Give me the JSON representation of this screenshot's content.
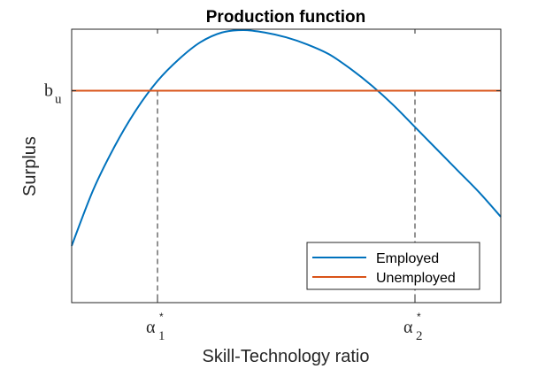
{
  "chart_data": {
    "type": "line",
    "title": "Production function",
    "xlabel": "Skill-Technology ratio",
    "ylabel": "Surplus",
    "xlim": [
      0,
      1
    ],
    "ylim": [
      0,
      1
    ],
    "grid": false,
    "legend": "bottom-right",
    "series": [
      {
        "name": "Employed",
        "color": "#0072BD",
        "x": [
          0,
          0.05,
          0.1,
          0.15,
          0.2,
          0.25,
          0.3,
          0.35,
          0.4,
          0.45,
          0.5,
          0.55,
          0.6,
          0.65,
          0.7,
          0.75,
          0.8,
          0.85,
          0.9,
          0.95,
          1.0
        ],
        "y": [
          0.11,
          0.34,
          0.52,
          0.67,
          0.79,
          0.88,
          0.95,
          0.99,
          1.0,
          0.99,
          0.97,
          0.94,
          0.9,
          0.84,
          0.77,
          0.69,
          0.6,
          0.51,
          0.42,
          0.33,
          0.23
        ]
      },
      {
        "name": "Unemployed",
        "color": "#D95319",
        "x": [
          0,
          1
        ],
        "y": [
          0.75,
          0.75
        ]
      }
    ],
    "yticks": [
      {
        "value": 0.75,
        "label": "b",
        "sub": "u"
      }
    ],
    "xticks": [
      {
        "value": 0.2,
        "label": "α",
        "sub": "1",
        "sup": "*"
      },
      {
        "value": 0.8,
        "label": "α",
        "sub": "2",
        "sup": "*"
      }
    ],
    "reference_lines": [
      {
        "x": 0.2,
        "style": "dashed",
        "color": "#262626"
      },
      {
        "x": 0.8,
        "style": "dashed",
        "color": "#262626"
      }
    ]
  }
}
